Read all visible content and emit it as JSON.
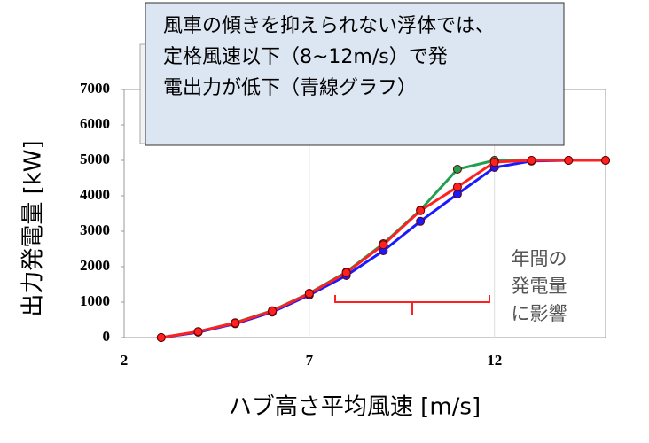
{
  "chart_data": {
    "type": "line",
    "x": [
      3,
      4,
      5,
      6,
      7,
      8,
      9,
      10,
      11,
      12,
      13,
      14,
      15
    ],
    "series": [
      {
        "color": "#20a050",
        "values": [
          0,
          170,
          420,
          760,
          1250,
          1850,
          2650,
          3600,
          4750,
          5000,
          5000,
          5000,
          5000
        ]
      },
      {
        "color": "#1a1aff",
        "values": [
          0,
          150,
          390,
          720,
          1200,
          1750,
          2450,
          3280,
          4050,
          4800,
          4980,
          5000,
          5000
        ]
      },
      {
        "color": "#ff2020",
        "values": [
          0,
          170,
          410,
          750,
          1240,
          1830,
          2620,
          3580,
          4250,
          4950,
          5000,
          5000,
          5000
        ]
      }
    ],
    "xlim": [
      2,
      15
    ],
    "xticks": [
      2,
      7,
      12
    ],
    "ylim": [
      0,
      7000
    ],
    "yticks": [
      0,
      1000,
      2000,
      3000,
      4000,
      5000,
      6000,
      7000
    ],
    "grid": "x",
    "x_label": "ハブ高さ平均風速 [m/s]",
    "y_label": "出力発電量 [kW]",
    "callout": [
      "風車の傾きを抑えられない浮体では、",
      "定格風速以下（8~12m/s）で発",
      "電出力が低下（青線グラフ）"
    ],
    "bracket_note": [
      "年間の",
      "発電量",
      "に影響"
    ]
  }
}
